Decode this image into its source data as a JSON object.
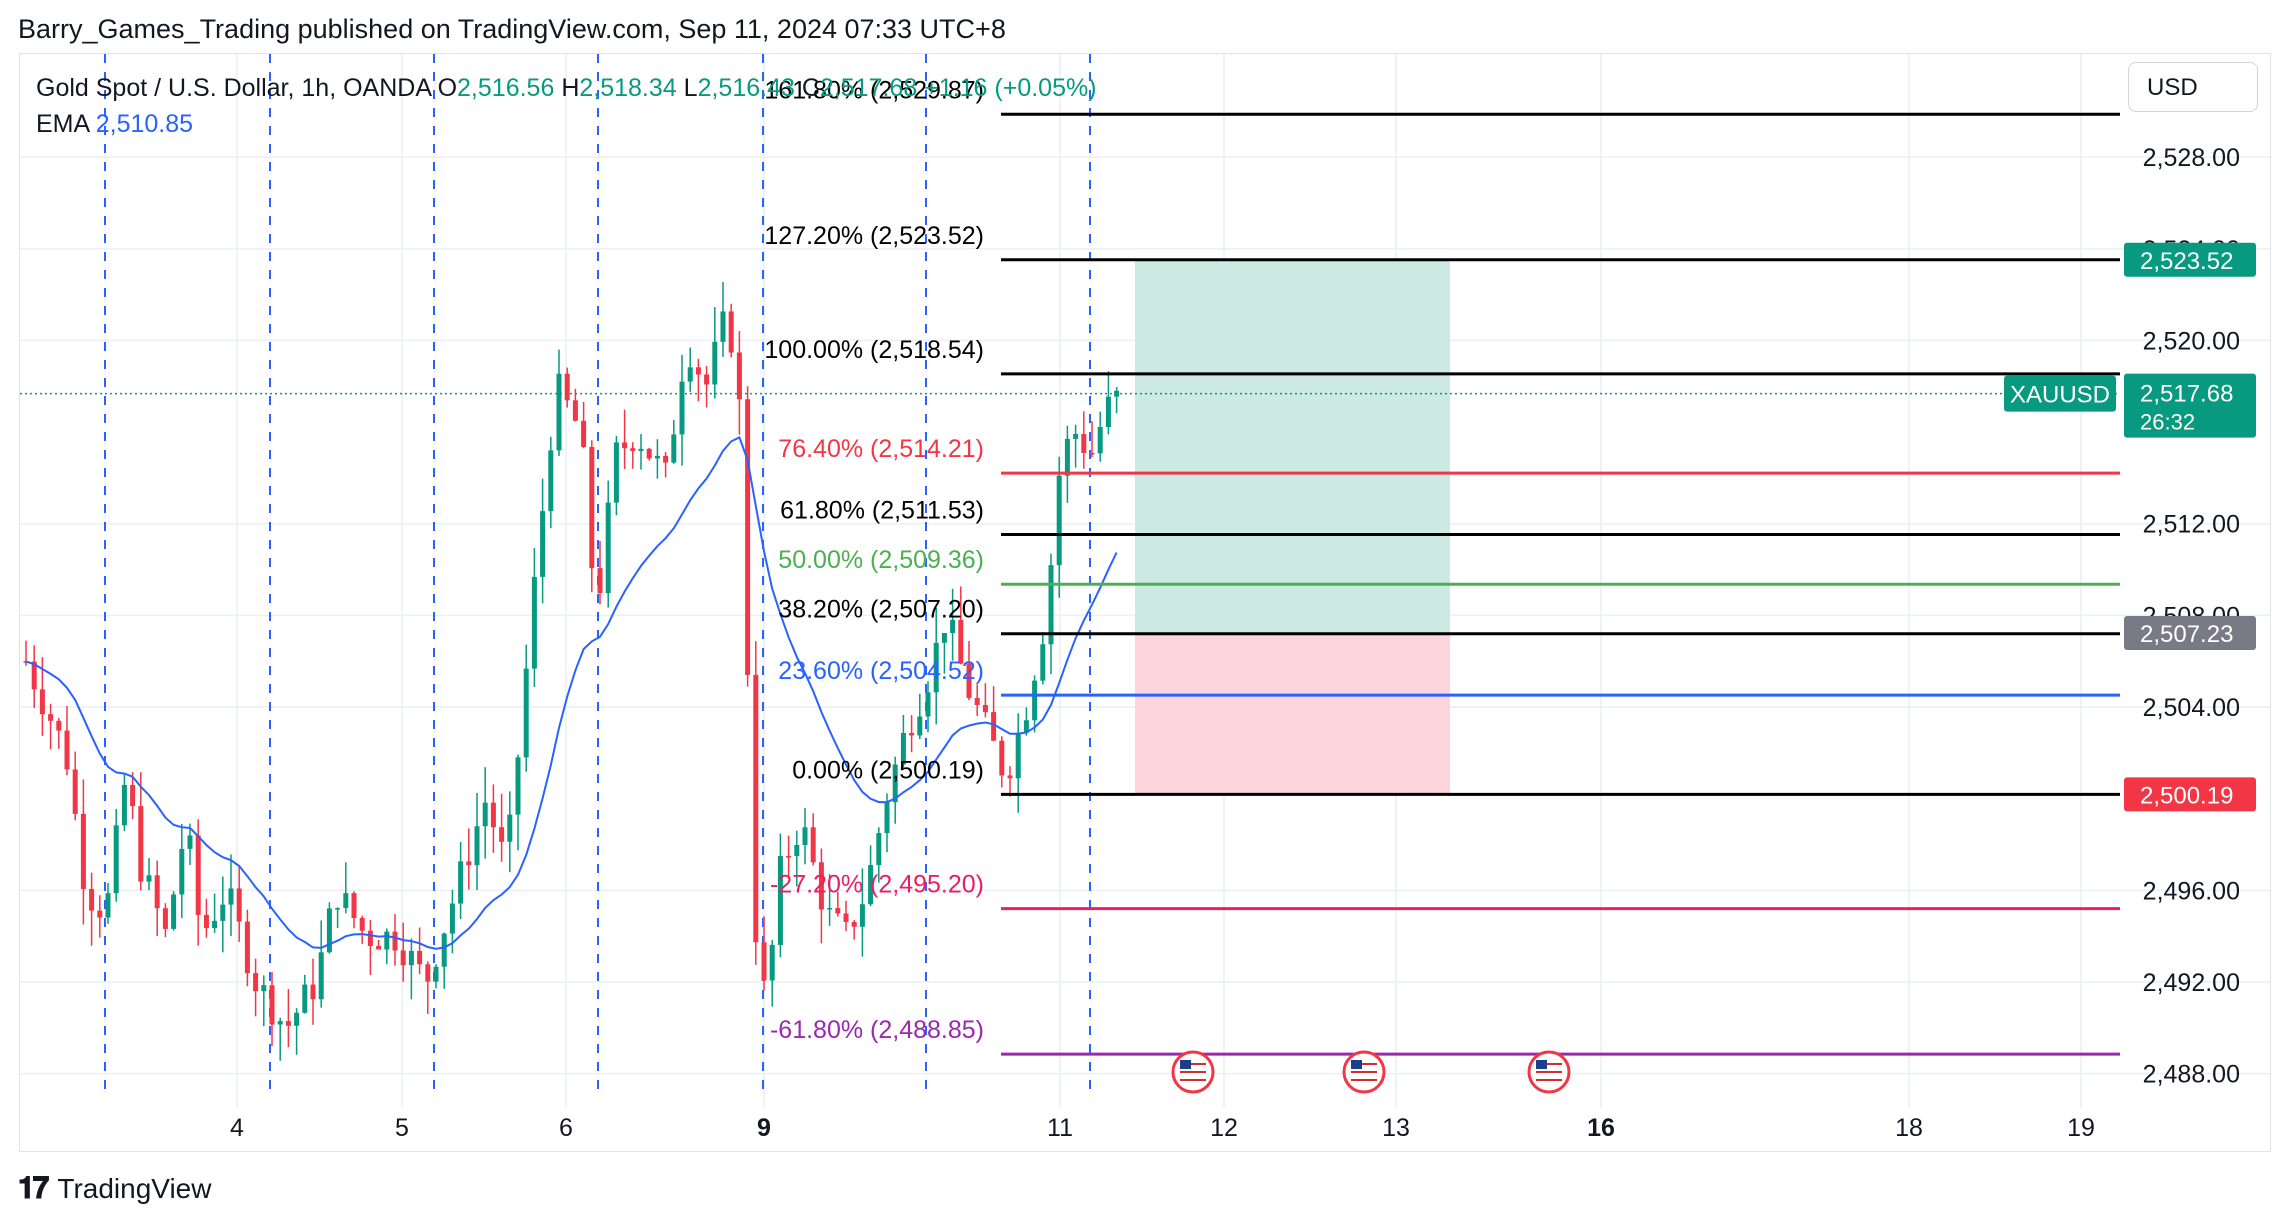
{
  "publisher_line": "Barry_Games_Trading published on TradingView.com, Sep 11, 2024 07:33 UTC+8",
  "legend": {
    "symbol": "Gold Spot / U.S. Dollar, 1h, OANDA",
    "o_label": "O",
    "o_value": "2,516.56",
    "h_label": "H",
    "h_value": "2,518.34",
    "l_label": "L",
    "l_value": "2,516.43",
    "c_label": "C",
    "c_value": "2,517.68",
    "change": "+1.16 (+0.05%)",
    "ema_label": "EMA",
    "ema_value": "2,510.85"
  },
  "currency": "USD",
  "footer_brand": "TradingView",
  "colors": {
    "up": "#089981",
    "down": "#f23645",
    "ema": "#2962ff",
    "grid": "#eceff4",
    "session_line": "#2962ff",
    "profit_zone": "#cce9e2",
    "loss_zone": "#fbd5d9"
  },
  "chart_data": {
    "type": "candlestick",
    "symbol": "XAUUSD",
    "interval": "1h",
    "ylim": [
      2486.5,
      2532.5
    ],
    "y_ticks": [
      {
        "value": 2528,
        "label": "2,528.00"
      },
      {
        "value": 2524,
        "label": "2,524.00"
      },
      {
        "value": 2520,
        "label": "2,520.00"
      },
      {
        "value": 2512,
        "label": "2,512.00"
      },
      {
        "value": 2508,
        "label": "2,508.00"
      },
      {
        "value": 2504,
        "label": "2,504.00"
      },
      {
        "value": 2496,
        "label": "2,496.00"
      },
      {
        "value": 2492,
        "label": "2,492.00"
      },
      {
        "value": 2488,
        "label": "2,488.00"
      }
    ],
    "x_ticks": [
      {
        "label": "4",
        "bold": false
      },
      {
        "label": "5",
        "bold": false
      },
      {
        "label": "6",
        "bold": false
      },
      {
        "label": "9",
        "bold": true
      },
      {
        "label": "11",
        "bold": false
      },
      {
        "label": "12",
        "bold": false
      },
      {
        "label": "13",
        "bold": false
      },
      {
        "label": "16",
        "bold": true
      },
      {
        "label": "18",
        "bold": false
      },
      {
        "label": "19",
        "bold": false
      }
    ],
    "fib_levels": [
      {
        "label": "161.80% (2,529.87)",
        "value": 2529.87,
        "color": "#000000"
      },
      {
        "label": "127.20% (2,523.52)",
        "value": 2523.52,
        "color": "#000000"
      },
      {
        "label": "100.00% (2,518.54)",
        "value": 2518.54,
        "color": "#000000"
      },
      {
        "label": "76.40% (2,514.21)",
        "value": 2514.21,
        "color": "#f23645"
      },
      {
        "label": "61.80% (2,511.53)",
        "value": 2511.53,
        "color": "#000000"
      },
      {
        "label": "50.00% (2,509.36)",
        "value": 2509.36,
        "color": "#4caf50"
      },
      {
        "label": "38.20% (2,507.20)",
        "value": 2507.2,
        "color": "#000000"
      },
      {
        "label": "23.60% (2,504.52)",
        "value": 2504.52,
        "color": "#2962ff"
      },
      {
        "label": "0.00% (2,500.19)",
        "value": 2500.19,
        "color": "#000000"
      },
      {
        "label": "-27.20% (2,495.20)",
        "value": 2495.2,
        "color": "#e91e63"
      },
      {
        "label": "-61.80% (2,488.85)",
        "value": 2488.85,
        "color": "#9c27b0"
      }
    ],
    "position": {
      "entry": 2507.23,
      "target": 2523.52,
      "stop": 2500.19
    },
    "price_labels": [
      {
        "text": "2,523.52",
        "value": 2523.52,
        "bg": "#089981"
      },
      {
        "text": "2,507.23",
        "value": 2507.23,
        "bg": "#787b86"
      },
      {
        "text": "2,500.19",
        "value": 2500.19,
        "bg": "#f23645"
      }
    ],
    "last_price": {
      "symbol": "XAUUSD",
      "value": 2517.68,
      "text": "2,517.68",
      "countdown": "26:32"
    },
    "ema_last": 2510.85,
    "event_flag_count": 3,
    "ohlc_note": "Hourly candles Sep 3 – Sep 11, 2024; swing low 2,500.19, swing high 2,518.54"
  }
}
